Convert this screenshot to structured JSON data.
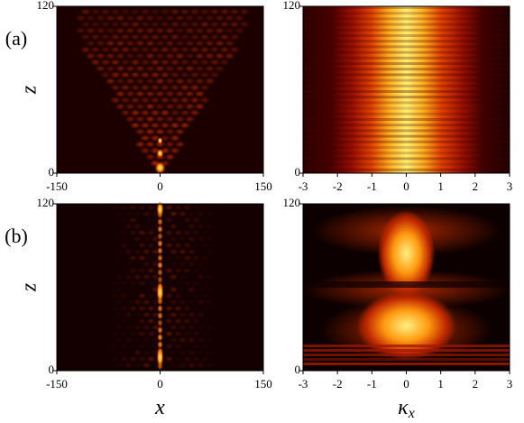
{
  "chart_data": [
    {
      "type": "heatmap",
      "panel_label": "(a)",
      "ylabel": "z",
      "xlim": [
        -150,
        150
      ],
      "xticks": [
        -150,
        0,
        150
      ],
      "ylim": [
        0,
        120
      ],
      "yticks": [
        0,
        120
      ]
    },
    {
      "type": "heatmap",
      "xlim": [
        -3,
        3
      ],
      "xticks": [
        -3,
        -2,
        -1,
        0,
        1,
        2,
        3
      ],
      "ylim": [
        0,
        120
      ],
      "yticks": [
        0,
        120
      ]
    },
    {
      "type": "heatmap",
      "panel_label": "(b)",
      "ylabel": "z",
      "xlabel": "x",
      "xlim": [
        -150,
        150
      ],
      "xticks": [
        -150,
        0,
        150
      ],
      "ylim": [
        0,
        120
      ],
      "yticks": [
        0,
        120
      ]
    },
    {
      "type": "heatmap",
      "xlabel": "κ",
      "xlabel_sub": "x",
      "xlim": [
        -3,
        3
      ],
      "xticks": [
        -3,
        -2,
        -1,
        0,
        1,
        2,
        3
      ],
      "ylim": [
        0,
        120
      ],
      "yticks": [
        0,
        120
      ]
    }
  ]
}
